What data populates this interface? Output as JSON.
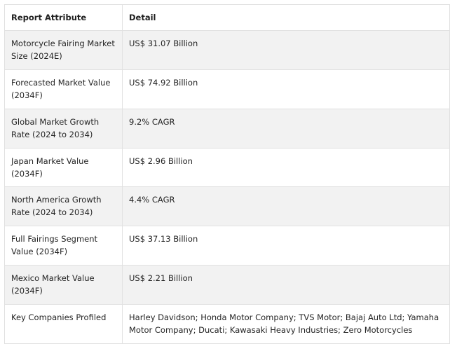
{
  "table": {
    "headers": [
      "Report Attribute",
      "Detail"
    ],
    "rows": [
      {
        "attribute": "Motorcycle Fairing Market Size (2024E)",
        "detail": "US$ 31.07 Billion"
      },
      {
        "attribute": "Forecasted Market Value (2034F)",
        "detail": "US$ 74.92 Billion"
      },
      {
        "attribute": "Global Market Growth Rate (2024 to 2034)",
        "detail": "9.2% CAGR"
      },
      {
        "attribute": "Japan Market Value (2034F)",
        "detail": "US$ 2.96 Billion"
      },
      {
        "attribute": "North America Growth Rate (2024 to 2034)",
        "detail": "4.4% CAGR"
      },
      {
        "attribute": "Full Fairings Segment Value (2034F)",
        "detail": "US$ 37.13 Billion"
      },
      {
        "attribute": "Mexico Market Value (2034F)",
        "detail": "US$ 2.21 Billion"
      },
      {
        "attribute": "Key Companies Profiled",
        "detail": "Harley Davidson; Honda Motor Company; TVS Motor; Bajaj Auto Ltd; Yamaha Motor Company; Ducati; Kawasaki Heavy Industries; Zero Motorcycles"
      }
    ]
  }
}
